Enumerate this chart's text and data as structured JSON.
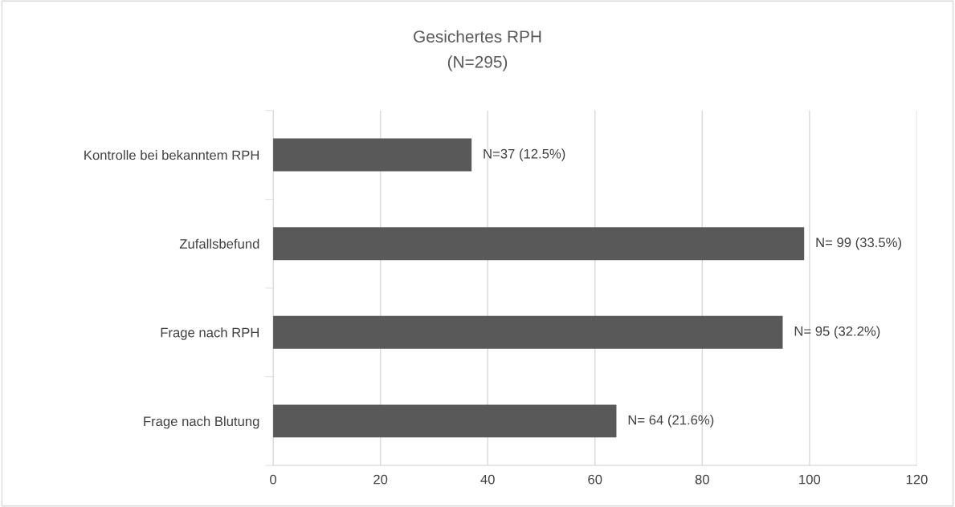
{
  "chart_data": {
    "type": "bar",
    "orientation": "horizontal",
    "title": "Gesichertes RPH",
    "subtitle": "(N=295)",
    "categories": [
      "Kontrolle bei bekanntem RPH",
      "Zufallsbefund",
      "Frage nach RPH",
      "Frage nach Blutung"
    ],
    "values": [
      37,
      99,
      95,
      64
    ],
    "value_labels": [
      "N=37 (12.5%)",
      "N= 99 (33.5%)",
      "N= 95 (32.2%)",
      "N= 64 (21.6%)"
    ],
    "color": "#595959",
    "xlim": [
      0,
      120
    ],
    "xticks": [
      0,
      20,
      40,
      60,
      80,
      100,
      120
    ],
    "grid": "x",
    "legend": false
  }
}
